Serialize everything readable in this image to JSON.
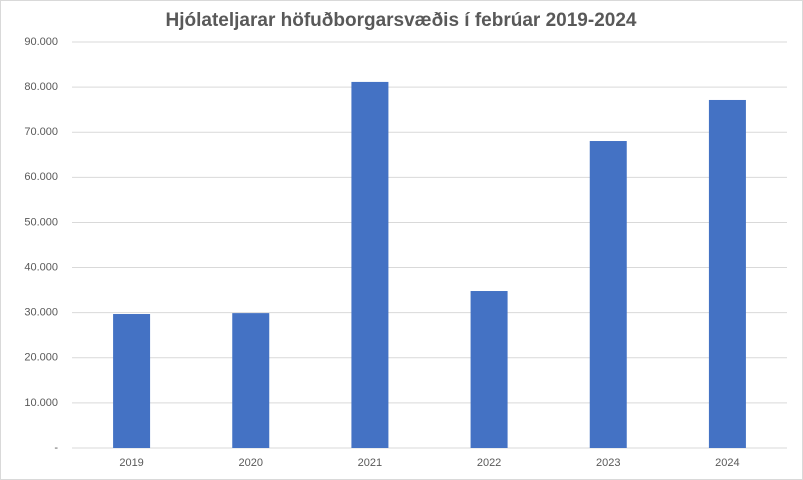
{
  "chart_data": {
    "type": "bar",
    "title": "Hjólateljarar höfuðborgarsvæðis í febrúar 2019-2024",
    "categories": [
      "2019",
      "2020",
      "2021",
      "2022",
      "2023",
      "2024"
    ],
    "values": [
      29700,
      29900,
      81150,
      34800,
      68050,
      77150
    ],
    "color": "#4472c4",
    "ylim": [
      0,
      90000
    ],
    "yticks": [
      {
        "value": 0,
        "label": "-"
      },
      {
        "value": 10000,
        "label": "10.000"
      },
      {
        "value": 20000,
        "label": "20.000"
      },
      {
        "value": 30000,
        "label": "30.000"
      },
      {
        "value": 40000,
        "label": "40.000"
      },
      {
        "value": 50000,
        "label": "50.000"
      },
      {
        "value": 60000,
        "label": "60.000"
      },
      {
        "value": 70000,
        "label": "70.000"
      },
      {
        "value": 80000,
        "label": "80.000"
      },
      {
        "value": 90000,
        "label": "90.000"
      }
    ],
    "grid": true
  }
}
